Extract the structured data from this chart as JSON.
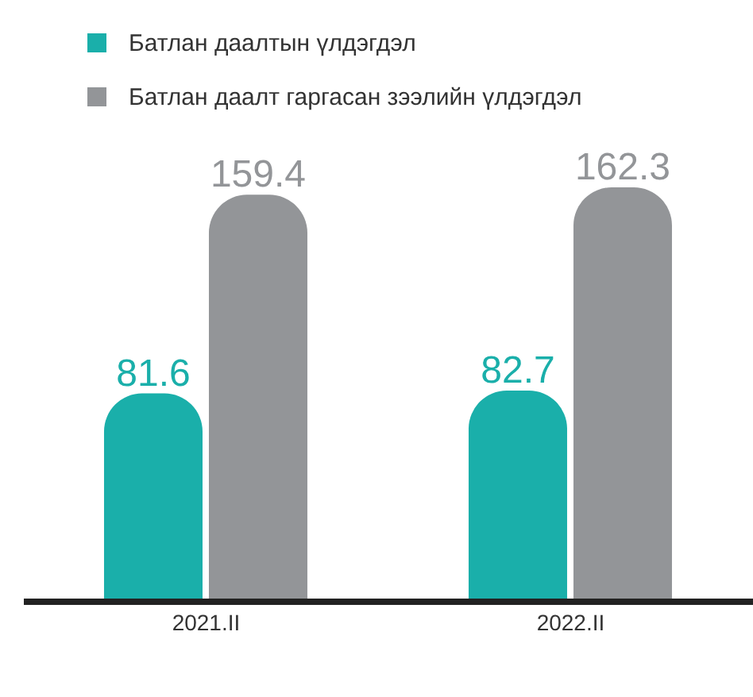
{
  "chart_data": {
    "type": "bar",
    "categories": [
      "2021.II",
      "2022.II"
    ],
    "series": [
      {
        "name": "Батлан даалтын үлдэгдэл",
        "color": "#1aafaa",
        "values": [
          81.6,
          82.7
        ]
      },
      {
        "name": "Батлан даалт гаргасан зээлийн үлдэгдэл",
        "color": "#939598",
        "values": [
          159.4,
          162.3
        ]
      }
    ],
    "data_labels": true,
    "legend": "top left"
  }
}
